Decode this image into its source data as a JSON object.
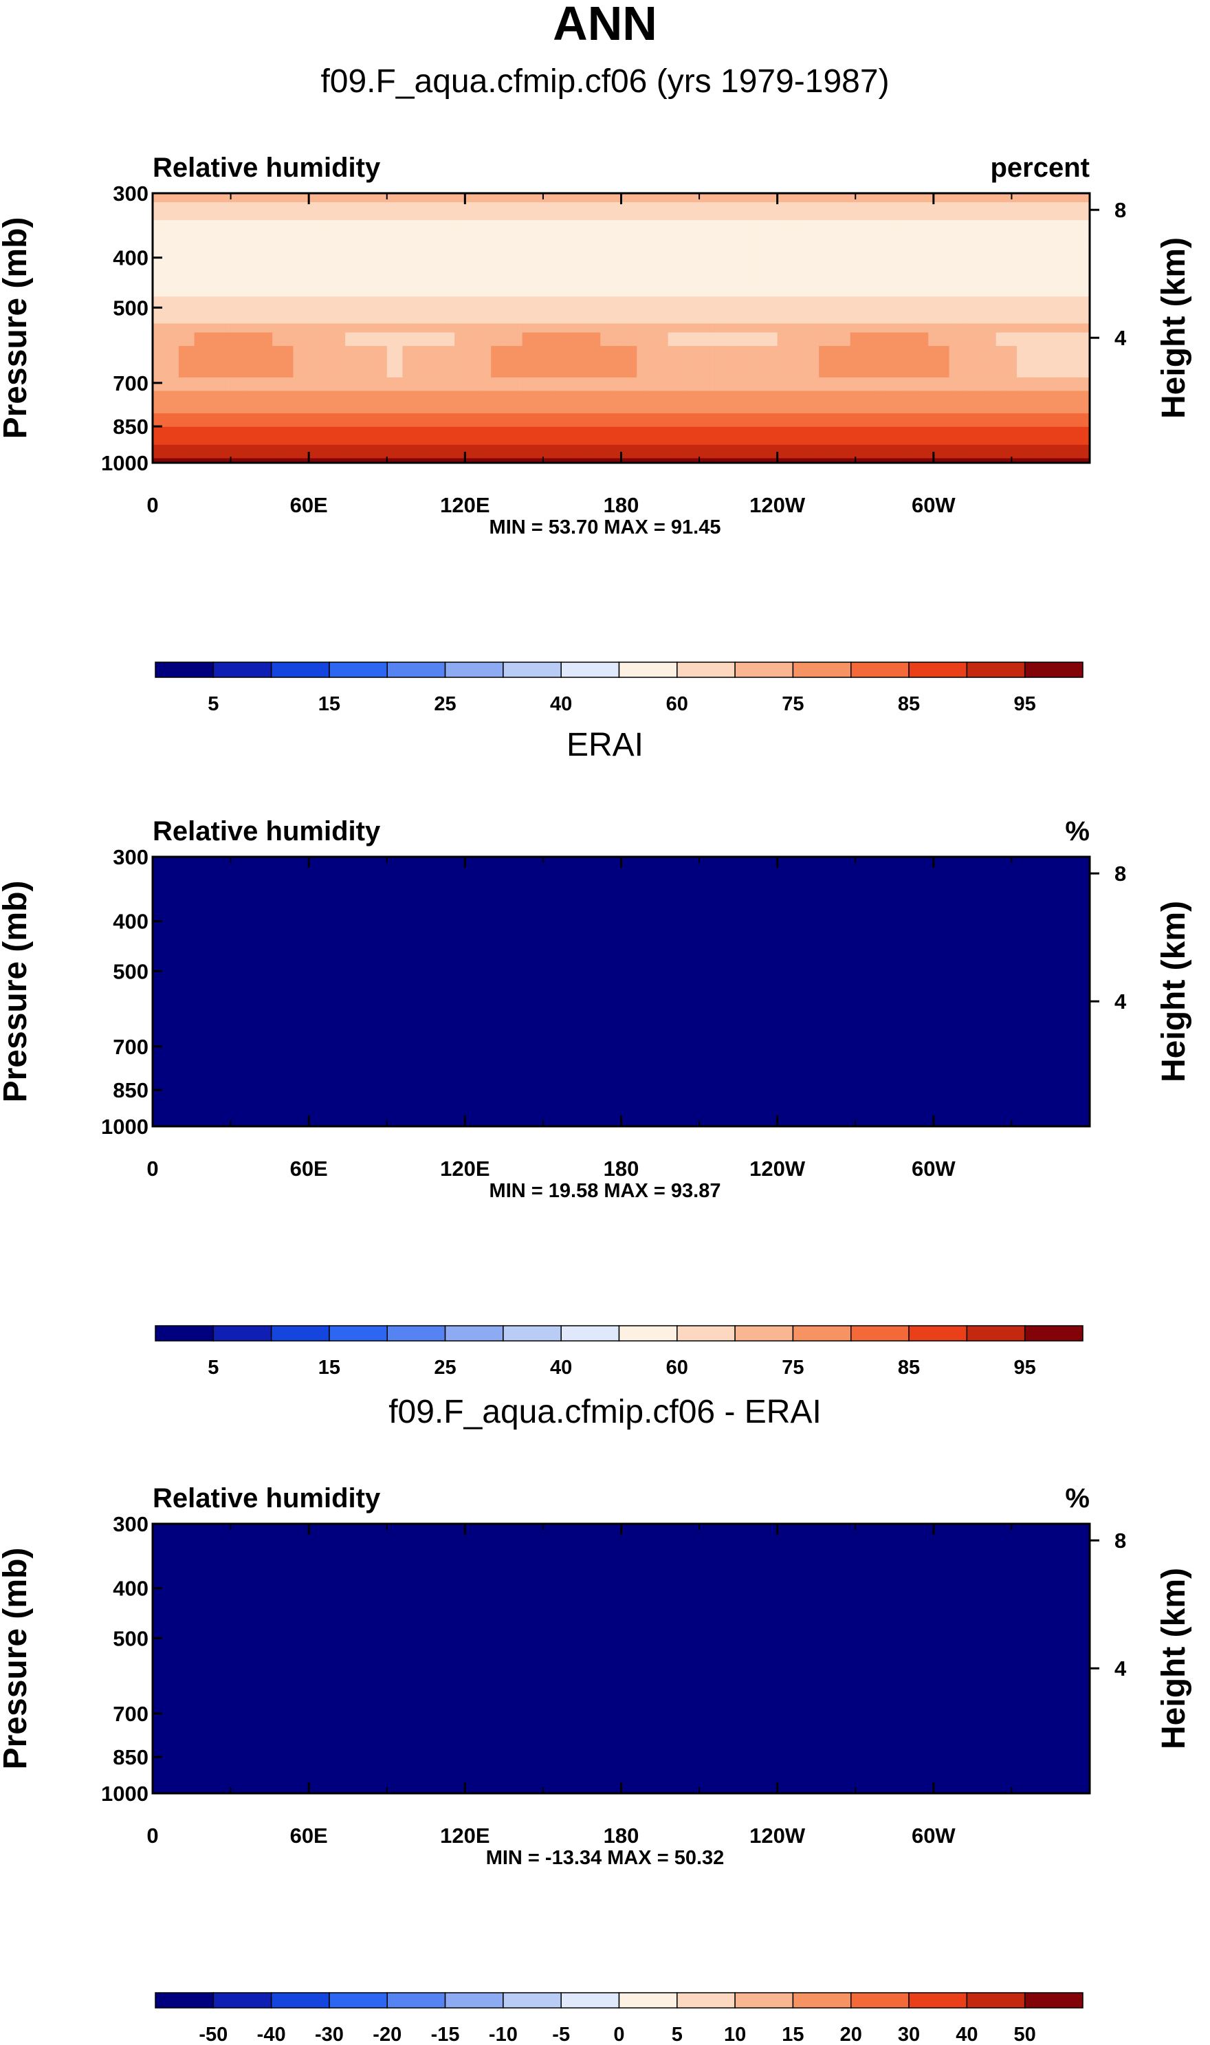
{
  "figure_title": "ANN",
  "chart_data": [
    {
      "type": "heatmap",
      "title": "f09.F_aqua.cfmip.cf06 (yrs 1979-1987)",
      "variable": "Relative humidity",
      "units": "percent",
      "field": "model",
      "xlabel": "",
      "ylabel": "Pressure (mb)",
      "y2label": "Height (km)",
      "x_ticks": [
        "0",
        "60E",
        "120E",
        "180",
        "120W",
        "60W"
      ],
      "x_tick_values": [
        0,
        60,
        120,
        180,
        240,
        300
      ],
      "xlim": [
        0,
        360
      ],
      "y_ticks": [
        "300",
        "400",
        "500",
        "700",
        "850",
        "1000"
      ],
      "y_tick_values": [
        300,
        400,
        500,
        700,
        850,
        1000
      ],
      "ylim": [
        1000,
        300
      ],
      "y2_ticks": [
        "8",
        "4"
      ],
      "y2_tick_values": [
        8,
        4
      ],
      "min": 53.7,
      "max": 91.45,
      "stats": "MIN =  53.70  MAX =  91.45",
      "colorbar_levels": [
        "5",
        "15",
        "25",
        "40",
        "60",
        "75",
        "85",
        "95"
      ],
      "colorbar_bins": 16
    },
    {
      "type": "heatmap",
      "title": "ERAI",
      "variable": "Relative humidity",
      "units": "%",
      "field": "obs",
      "xlabel": "",
      "ylabel": "Pressure (mb)",
      "y2label": "Height (km)",
      "x_ticks": [
        "0",
        "60E",
        "120E",
        "180",
        "120W",
        "60W"
      ],
      "x_tick_values": [
        0,
        60,
        120,
        180,
        240,
        300
      ],
      "xlim": [
        0,
        360
      ],
      "y_ticks": [
        "300",
        "400",
        "500",
        "700",
        "850",
        "1000"
      ],
      "y_tick_values": [
        300,
        400,
        500,
        700,
        850,
        1000
      ],
      "ylim": [
        1000,
        300
      ],
      "y2_ticks": [
        "8",
        "4"
      ],
      "y2_tick_values": [
        8,
        4
      ],
      "min": 19.58,
      "max": 93.87,
      "stats": "MIN =  19.58  MAX =  93.87",
      "colorbar_levels": [
        "5",
        "15",
        "25",
        "40",
        "60",
        "75",
        "85",
        "95"
      ],
      "colorbar_bins": 16
    },
    {
      "type": "heatmap",
      "title": "f09.F_aqua.cfmip.cf06 - ERAI",
      "variable": "Relative humidity",
      "units": "%",
      "field": "diff",
      "xlabel": "",
      "ylabel": "Pressure (mb)",
      "y2label": "Height (km)",
      "x_ticks": [
        "0",
        "60E",
        "120E",
        "180",
        "120W",
        "60W"
      ],
      "x_tick_values": [
        0,
        60,
        120,
        180,
        240,
        300
      ],
      "xlim": [
        0,
        360
      ],
      "y_ticks": [
        "300",
        "400",
        "500",
        "700",
        "850",
        "1000"
      ],
      "y_tick_values": [
        300,
        400,
        500,
        700,
        850,
        1000
      ],
      "ylim": [
        1000,
        300
      ],
      "y2_ticks": [
        "8",
        "4"
      ],
      "y2_tick_values": [
        8,
        4
      ],
      "min": -13.34,
      "max": 50.32,
      "stats": "MIN = -13.34  MAX =  50.32",
      "colorbar_levels": [
        "-50",
        "-40",
        "-30",
        "-20",
        "-15",
        "-10",
        "-5",
        "0",
        "5",
        "10",
        "15",
        "20",
        "30",
        "40",
        "50"
      ],
      "colorbar_bins": 16
    }
  ],
  "colormap": [
    "#00007e",
    "#0f1fb4",
    "#1446df",
    "#2d66f0",
    "#5583f2",
    "#8cabf2",
    "#b9ccf5",
    "#dfe9fb",
    "#fdf1e3",
    "#fcd8c0",
    "#fab591",
    "#f79263",
    "#f4693a",
    "#ea4019",
    "#c4280f",
    "#820308"
  ]
}
